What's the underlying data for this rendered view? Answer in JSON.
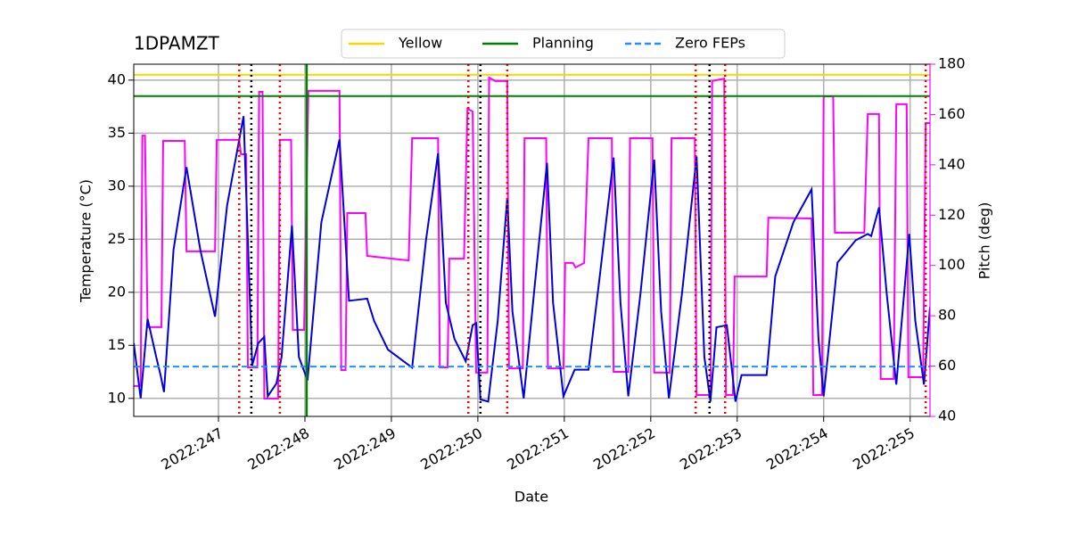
{
  "chart_data": {
    "type": "line",
    "title": "1DPAMZT",
    "xlabel": "Date",
    "ylabel": "Temperature (°C)",
    "y2label": "Pitch (deg)",
    "y2color": "#ff00ff",
    "grid": true,
    "legend": "top",
    "xlim": [
      246.02,
      255.23
    ],
    "xticks": [
      {
        "value": 247,
        "label": "2022:247"
      },
      {
        "value": 248,
        "label": "2022:248"
      },
      {
        "value": 249,
        "label": "2022:249"
      },
      {
        "value": 250,
        "label": "2022:250"
      },
      {
        "value": 251,
        "label": "2022:251"
      },
      {
        "value": 252,
        "label": "2022:252"
      },
      {
        "value": 253,
        "label": "2022:253"
      },
      {
        "value": 254,
        "label": "2022:254"
      },
      {
        "value": 255,
        "label": "2022:255"
      }
    ],
    "ylim": [
      8.3,
      41.5
    ],
    "yticks": [
      10,
      15,
      20,
      25,
      30,
      35,
      40
    ],
    "y2lim": [
      40,
      180
    ],
    "y2ticks": [
      40,
      60,
      80,
      100,
      120,
      140,
      160,
      180
    ],
    "hlines": [
      {
        "name": "Yellow",
        "value": 40.5,
        "color": "#ffd700",
        "dash": false
      },
      {
        "name": "Planning",
        "value": 38.5,
        "color": "#008000",
        "dash": false
      },
      {
        "name": "Zero FEPs",
        "value": 13,
        "color": "#1e90ff",
        "dash": true
      }
    ],
    "vlines": [
      {
        "x": 247.24,
        "color": "#ff0000",
        "dash": true
      },
      {
        "x": 247.71,
        "color": "#ff0000",
        "dash": true
      },
      {
        "x": 249.89,
        "color": "#ff0000",
        "dash": true
      },
      {
        "x": 250.34,
        "color": "#ff0000",
        "dash": true
      },
      {
        "x": 252.52,
        "color": "#ff0000",
        "dash": true
      },
      {
        "x": 252.86,
        "color": "#ff0000",
        "dash": true
      },
      {
        "x": 255.18,
        "color": "#ff0000",
        "dash": true
      },
      {
        "x": 247.38,
        "color": "#000000",
        "dash": true
      },
      {
        "x": 250.03,
        "color": "#000000",
        "dash": true
      },
      {
        "x": 252.68,
        "color": "#000000",
        "dash": true
      },
      {
        "x": 248.02,
        "color": "#008000",
        "dash": false
      }
    ],
    "temperature": {
      "color": "#0000dd",
      "x": [
        246.02,
        246.1,
        246.18,
        246.28,
        246.33,
        246.37,
        246.48,
        246.63,
        246.79,
        246.96,
        247.1,
        247.29,
        247.39,
        247.46,
        247.53,
        247.57,
        247.67,
        247.73,
        247.85,
        247.93,
        248.03,
        248.19,
        248.4,
        248.51,
        248.72,
        248.8,
        248.96,
        249.24,
        249.4,
        249.54,
        249.63,
        249.73,
        249.86,
        249.94,
        249.98,
        250.03,
        250.12,
        250.23,
        250.34,
        250.4,
        250.53,
        250.66,
        250.8,
        250.87,
        250.99,
        251.12,
        251.28,
        251.41,
        251.57,
        251.65,
        251.74,
        251.88,
        252.04,
        252.12,
        252.21,
        252.36,
        252.53,
        252.62,
        252.69,
        252.76,
        252.88,
        252.98,
        253.05,
        253.34,
        253.44,
        253.65,
        253.86,
        253.94,
        254.0,
        254.16,
        254.37,
        254.51,
        254.55,
        254.64,
        254.73,
        254.84,
        254.99,
        255.06,
        255.16,
        255.23
      ],
      "values": [
        15.2,
        10.0,
        17.5,
        13.9,
        12.2,
        10.6,
        24.0,
        31.8,
        24.0,
        17.7,
        28.2,
        36.6,
        13.1,
        15.2,
        15.8,
        10.2,
        11.4,
        13.9,
        26.3,
        13.9,
        11.7,
        26.6,
        34.4,
        19.2,
        19.4,
        17.3,
        14.6,
        12.9,
        24.9,
        33.1,
        19.0,
        15.6,
        13.5,
        16.9,
        17.1,
        9.9,
        9.7,
        17.3,
        28.9,
        18.2,
        10.0,
        20.8,
        32.2,
        19.0,
        10.2,
        12.7,
        12.7,
        21.5,
        32.7,
        19.0,
        10.2,
        19.8,
        32.5,
        18.2,
        10.0,
        19.8,
        32.8,
        13.9,
        9.7,
        16.7,
        16.9,
        9.7,
        12.2,
        12.2,
        21.5,
        26.6,
        29.7,
        15.6,
        10.2,
        22.8,
        24.9,
        25.5,
        25.3,
        28.0,
        19.8,
        11.3,
        25.5,
        17.3,
        11.3,
        18.6
      ]
    },
    "pitch": {
      "color": "#ff00ff",
      "axis": "y2",
      "x": [
        246.02,
        246.1,
        246.12,
        246.15,
        246.18,
        246.34,
        246.36,
        246.61,
        246.63,
        246.96,
        246.98,
        247.24,
        247.26,
        247.32,
        247.34,
        247.45,
        247.47,
        247.51,
        247.53,
        247.69,
        247.71,
        247.84,
        247.86,
        247.99,
        248.04,
        248.4,
        248.42,
        248.47,
        248.49,
        248.7,
        248.72,
        249.01,
        249.2,
        249.24,
        249.54,
        249.56,
        249.65,
        249.67,
        249.84,
        249.88,
        249.94,
        249.98,
        250.11,
        250.13,
        250.2,
        250.34,
        250.36,
        250.52,
        250.54,
        250.79,
        250.81,
        250.99,
        251.01,
        251.1,
        251.13,
        251.23,
        251.28,
        251.55,
        251.57,
        251.74,
        251.76,
        252.02,
        252.04,
        252.22,
        252.24,
        252.51,
        252.53,
        252.69,
        252.71,
        252.85,
        252.87,
        252.95,
        252.97,
        253.34,
        253.36,
        253.86,
        253.88,
        253.98,
        254.0,
        254.11,
        254.13,
        254.47,
        254.51,
        254.64,
        254.66,
        254.81,
        254.84,
        254.96,
        254.98,
        255.15,
        255.18,
        255.23
      ],
      "values": [
        52.1,
        52.1,
        151.6,
        151.6,
        75.5,
        75.5,
        149.5,
        149.5,
        105.6,
        105.6,
        149.9,
        149.9,
        144.2,
        144.2,
        59.5,
        59.5,
        169.0,
        169.0,
        47.1,
        47.1,
        149.9,
        149.9,
        74.4,
        74.4,
        169.4,
        169.4,
        58.4,
        58.4,
        120.8,
        120.8,
        103.8,
        102.7,
        102.0,
        150.6,
        150.6,
        59.5,
        59.5,
        102.7,
        102.7,
        162.3,
        161.2,
        57.4,
        57.4,
        174.7,
        173.3,
        173.3,
        59.1,
        59.1,
        150.6,
        150.6,
        59.1,
        59.1,
        101.0,
        101.0,
        99.2,
        101.0,
        150.6,
        150.6,
        57.7,
        57.7,
        150.6,
        150.6,
        57.4,
        57.4,
        150.6,
        150.6,
        48.5,
        48.5,
        173.3,
        174.3,
        48.5,
        48.5,
        95.6,
        95.6,
        119.0,
        118.7,
        48.5,
        48.5,
        167.2,
        167.2,
        113.0,
        113.0,
        160.2,
        160.2,
        54.9,
        54.9,
        164.1,
        164.1,
        55.6,
        55.6,
        156.6,
        156.6
      ]
    }
  }
}
